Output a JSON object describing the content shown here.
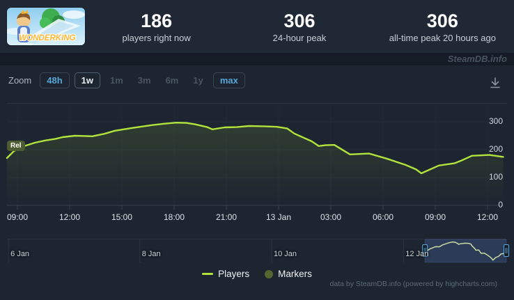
{
  "header": {
    "game": "WonderKing",
    "banner_text": "WONDERKING",
    "stats": [
      {
        "value": "186",
        "label": "players right now"
      },
      {
        "value": "306",
        "label": "24-hour peak"
      },
      {
        "value": "306",
        "label": "all-time peak 20 hours ago"
      }
    ]
  },
  "watermark": "SteamDB.info",
  "toolbar": {
    "zoom_label": "Zoom",
    "buttons": [
      {
        "label": "48h",
        "state": "enabled"
      },
      {
        "label": "1w",
        "state": "selected"
      },
      {
        "label": "1m",
        "state": "disabled"
      },
      {
        "label": "3m",
        "state": "disabled"
      },
      {
        "label": "6m",
        "state": "disabled"
      },
      {
        "label": "1y",
        "state": "disabled"
      },
      {
        "label": "max",
        "state": "enabled"
      }
    ],
    "download_icon": "download-icon"
  },
  "chart_data": {
    "type": "line",
    "title": "",
    "xlabel": "",
    "ylabel": "",
    "grid": true,
    "legend_position": "bottom",
    "x_unit": "hours since 12 Jan 08:00",
    "x_range_hours": [
      0.4,
      28.92
    ],
    "ylim": [
      0,
      362
    ],
    "y_ticks": [
      0,
      100,
      200,
      300
    ],
    "x_ticks": [
      {
        "h": 1,
        "label": "09:00"
      },
      {
        "h": 4,
        "label": "12:00"
      },
      {
        "h": 7,
        "label": "15:00"
      },
      {
        "h": 10,
        "label": "18:00"
      },
      {
        "h": 13,
        "label": "21:00"
      },
      {
        "h": 16,
        "label": "13 Jan"
      },
      {
        "h": 19,
        "label": "03:00"
      },
      {
        "h": 22,
        "label": "06:00"
      },
      {
        "h": 25,
        "label": "09:00"
      },
      {
        "h": 28,
        "label": "12:00"
      }
    ],
    "series": [
      {
        "name": "Players",
        "color": "#b2e33c",
        "points": [
          [
            0.4,
            170
          ],
          [
            0.8,
            195
          ],
          [
            1.3,
            211
          ],
          [
            2.0,
            225
          ],
          [
            2.6,
            233
          ],
          [
            3.2,
            239
          ],
          [
            3.6,
            245
          ],
          [
            4.3,
            250
          ],
          [
            4.9,
            249
          ],
          [
            5.3,
            248
          ],
          [
            6.0,
            257
          ],
          [
            6.6,
            268
          ],
          [
            7.6,
            278
          ],
          [
            8.7,
            288
          ],
          [
            9.4,
            293
          ],
          [
            10.1,
            297
          ],
          [
            10.7,
            296
          ],
          [
            11.2,
            291
          ],
          [
            11.9,
            281
          ],
          [
            12.2,
            273
          ],
          [
            12.9,
            280
          ],
          [
            13.6,
            281
          ],
          [
            14.3,
            285
          ],
          [
            15.1,
            284
          ],
          [
            15.9,
            282
          ],
          [
            16.5,
            276
          ],
          [
            16.9,
            258
          ],
          [
            17.9,
            230
          ],
          [
            18.3,
            213
          ],
          [
            18.7,
            216
          ],
          [
            19.2,
            217
          ],
          [
            20.1,
            183
          ],
          [
            21.2,
            186
          ],
          [
            22.2,
            168
          ],
          [
            23.3,
            145
          ],
          [
            23.9,
            129
          ],
          [
            24.2,
            115
          ],
          [
            25.2,
            143
          ],
          [
            26.1,
            151
          ],
          [
            26.5,
            161
          ],
          [
            27.1,
            178
          ],
          [
            28.1,
            181
          ],
          [
            28.9,
            174
          ]
        ]
      }
    ],
    "markers_series": {
      "name": "Markers",
      "color": "#55662f"
    },
    "release_marker": {
      "label": "Rel"
    },
    "navigator": {
      "range_labels": [
        {
          "pos": 0.003,
          "label": "6 Jan"
        },
        {
          "pos": 0.266,
          "label": "8 Jan"
        },
        {
          "pos": 0.53,
          "label": "10 Jan"
        },
        {
          "pos": 0.794,
          "label": "12 Jan"
        }
      ],
      "window": [
        0.837,
        1.0
      ],
      "window_fill": "rgba(86,119,190,0.28)",
      "handle_color": "#57a7d8",
      "line_color": "#c9daa2"
    }
  },
  "legend": {
    "players": "Players",
    "markers": "Markers"
  },
  "credits": "data by SteamDB.info (powered by highcharts.com)",
  "colors": {
    "background": "#1d2530",
    "header_bg": "#1f2834",
    "band_bg": "#151c25",
    "accent_blue": "#57a7d8",
    "line_green": "#b2e33c",
    "olive_marker": "#55662f",
    "grid": "#252f3c",
    "axis": "#39434f",
    "text_light": "#dde2e7"
  }
}
